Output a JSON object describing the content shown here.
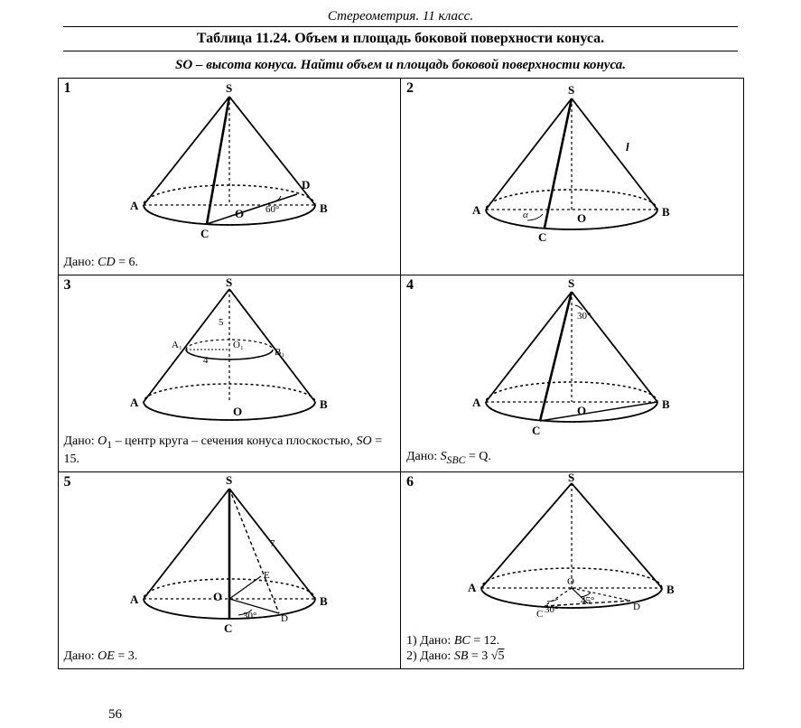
{
  "header": "Стереометрия. 11 класс.",
  "table_title": "Таблица 11.24. Объем и площадь боковой поверхности конуса.",
  "subtitle": "SO – высота конуса. Найти объем и площадь боковой поверхности конуса.",
  "page_number": "56",
  "colors": {
    "stroke": "#000000",
    "bg": "#ffffff"
  },
  "problems": [
    {
      "num": "1",
      "given_html": "Дано: <span class='it'>CD</span> = 6.",
      "labels": {
        "S": "S",
        "A": "A",
        "B": "B",
        "C": "C",
        "O": "O",
        "D": "D",
        "angle": "60°"
      }
    },
    {
      "num": "2",
      "given_html": "",
      "labels": {
        "S": "S",
        "A": "A",
        "B": "B",
        "C": "C",
        "O": "O",
        "alpha": "α",
        "l": "l"
      }
    },
    {
      "num": "3",
      "given_html": "Дано: <span class='it'>O</span><sub>1</sub> – центр круга – сечения конуса плоскостью, <span class='it'>SO</span> = 15.",
      "labels": {
        "S": "S",
        "A": "A",
        "B": "B",
        "O": "O",
        "A1": "A₁",
        "B1": "B₁",
        "O1": "O₁",
        "r1": "4",
        "h1": "5"
      }
    },
    {
      "num": "4",
      "given_html": "Дано: <span class='it'>S<sub>SBC</sub></span> = Q.",
      "labels": {
        "S": "S",
        "A": "A",
        "B": "B",
        "C": "C",
        "O": "O",
        "angle": "30°"
      }
    },
    {
      "num": "5",
      "given_html": "Дано: <span class='it'>OE</span> = 3.",
      "labels": {
        "S": "S",
        "A": "A",
        "B": "B",
        "C": "C",
        "O": "O",
        "D": "D",
        "E": "E",
        "angle": "30°",
        "slant": "7"
      }
    },
    {
      "num": "6",
      "given_html": "1) Дано: <span class='it'>BC</span> = 12.<br>2) Дано: <span class='it'>SB</span> = 3 √<span style='text-decoration:overline'>5</span>",
      "labels": {
        "S": "S",
        "A": "A",
        "B": "B",
        "C": "C",
        "O": "O",
        "D": "D",
        "a30": "30°",
        "a45": "45°"
      }
    }
  ]
}
